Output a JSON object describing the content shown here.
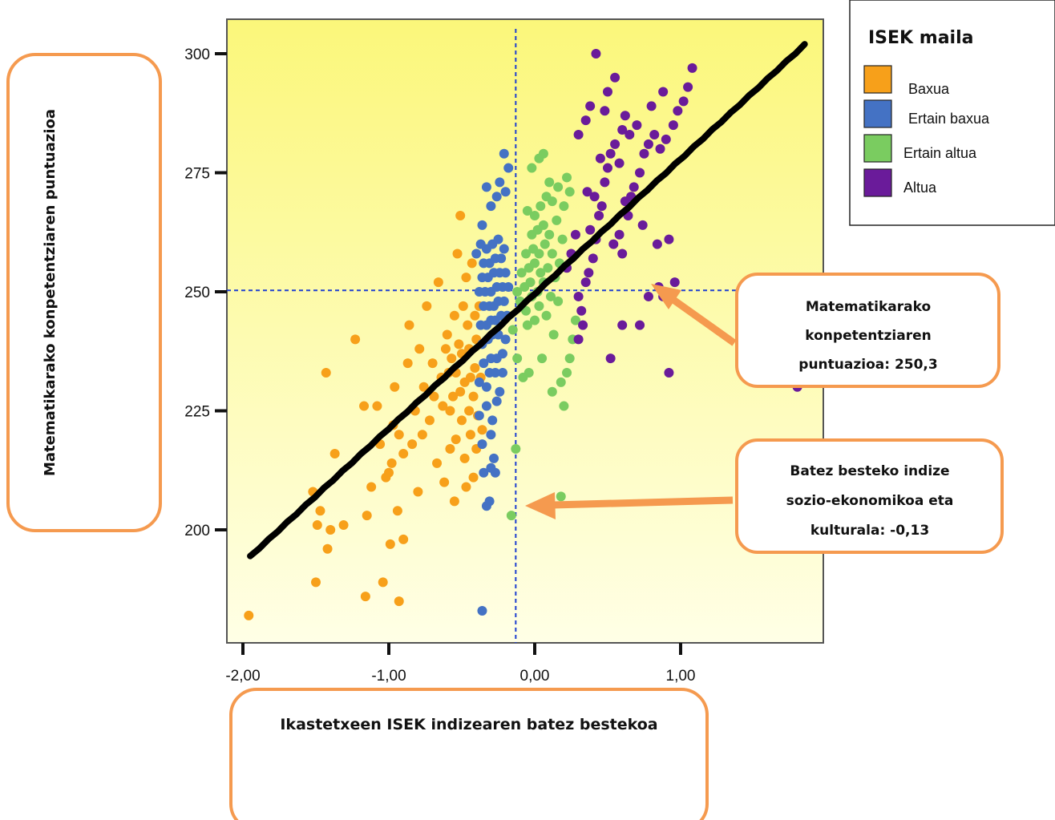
{
  "chart_data": {
    "type": "scatter",
    "xlabel": "Ikastetxeen ISEK indizearen batez bestekoa",
    "ylabel": "Matematikarako konpetentziaren puntuazioa",
    "xlim": [
      -2.1,
      1.95
    ],
    "ylim": [
      178,
      307
    ],
    "x_ticks": [
      -2,
      -1,
      0,
      1
    ],
    "x_tick_labels": [
      "-2,00",
      "-1,00",
      "0,00",
      "1,00"
    ],
    "y_ticks": [
      200,
      225,
      250,
      275,
      300
    ],
    "y_tick_labels": [
      "200",
      "225",
      "250",
      "275",
      "300"
    ],
    "background": "yellow-gradient",
    "legend": {
      "title": "ISEK maila",
      "placement": "top-right",
      "entries": [
        {
          "label": "Baxua",
          "color": "#F7A01A"
        },
        {
          "label": "Ertain baxua",
          "color": "#4472C4"
        },
        {
          "label": "Ertain altua",
          "color": "#7ACC60"
        },
        {
          "label": "Altua",
          "color": "#6A1B9A"
        }
      ]
    },
    "reference_lines": {
      "mean_x": -0.13,
      "mean_y": 250.3
    },
    "regression_line": {
      "x": [
        -1.95,
        1.85
      ],
      "y": [
        194.5,
        302
      ]
    },
    "series": [
      {
        "name": "Baxua",
        "color": "#F7A01A",
        "points": [
          [
            -1.96,
            182
          ],
          [
            -1.5,
            189
          ],
          [
            -1.49,
            201
          ],
          [
            -1.47,
            204
          ],
          [
            -1.42,
            196
          ],
          [
            -1.4,
            200
          ],
          [
            -1.52,
            208
          ],
          [
            -1.43,
            233
          ],
          [
            -1.37,
            216
          ],
          [
            -1.31,
            201
          ],
          [
            -1.23,
            240
          ],
          [
            -1.17,
            226
          ],
          [
            -1.15,
            203
          ],
          [
            -1.16,
            186
          ],
          [
            -1.12,
            209
          ],
          [
            -1.08,
            226
          ],
          [
            -1.06,
            218
          ],
          [
            -1.04,
            189
          ],
          [
            -1.02,
            211
          ],
          [
            -1.0,
            212
          ],
          [
            -0.99,
            197
          ],
          [
            -0.98,
            214
          ],
          [
            -0.97,
            222
          ],
          [
            -0.96,
            230
          ],
          [
            -0.94,
            204
          ],
          [
            -0.93,
            185
          ],
          [
            -0.93,
            220
          ],
          [
            -0.9,
            198
          ],
          [
            -0.9,
            216
          ],
          [
            -0.87,
            235
          ],
          [
            -0.86,
            243
          ],
          [
            -0.84,
            218
          ],
          [
            -0.82,
            225
          ],
          [
            -0.8,
            208
          ],
          [
            -0.79,
            238
          ],
          [
            -0.77,
            220
          ],
          [
            -0.76,
            230
          ],
          [
            -0.74,
            247
          ],
          [
            -0.72,
            223
          ],
          [
            -0.7,
            235
          ],
          [
            -0.69,
            228
          ],
          [
            -0.67,
            214
          ],
          [
            -0.66,
            252
          ],
          [
            -0.64,
            232
          ],
          [
            -0.63,
            226
          ],
          [
            -0.62,
            210
          ],
          [
            -0.61,
            238
          ],
          [
            -0.6,
            241
          ],
          [
            -0.59,
            233
          ],
          [
            -0.58,
            217
          ],
          [
            -0.58,
            225
          ],
          [
            -0.57,
            236
          ],
          [
            -0.56,
            228
          ],
          [
            -0.55,
            206
          ],
          [
            -0.55,
            245
          ],
          [
            -0.54,
            219
          ],
          [
            -0.54,
            233
          ],
          [
            -0.53,
            258
          ],
          [
            -0.52,
            239
          ],
          [
            -0.51,
            229
          ],
          [
            -0.51,
            266
          ],
          [
            -0.5,
            223
          ],
          [
            -0.5,
            237
          ],
          [
            -0.49,
            247
          ],
          [
            -0.48,
            215
          ],
          [
            -0.48,
            231
          ],
          [
            -0.47,
            209
          ],
          [
            -0.47,
            253
          ],
          [
            -0.46,
            243
          ],
          [
            -0.45,
            225
          ],
          [
            -0.45,
            238
          ],
          [
            -0.44,
            220
          ],
          [
            -0.44,
            232
          ],
          [
            -0.43,
            256
          ],
          [
            -0.42,
            211
          ],
          [
            -0.42,
            228
          ],
          [
            -0.41,
            245
          ],
          [
            -0.41,
            234
          ],
          [
            -0.4,
            217
          ],
          [
            -0.4,
            240
          ],
          [
            -0.39,
            224
          ],
          [
            -0.38,
            247
          ],
          [
            -0.37,
            232
          ],
          [
            -0.36,
            221
          ]
        ]
      },
      {
        "name": "Ertain baxua",
        "color": "#4472C4",
        "points": [
          [
            -0.36,
            183
          ],
          [
            -0.33,
            205
          ],
          [
            -0.31,
            206
          ],
          [
            -0.35,
            212
          ],
          [
            -0.3,
            213
          ],
          [
            -0.27,
            212
          ],
          [
            -0.28,
            215
          ],
          [
            -0.3,
            220
          ],
          [
            -0.36,
            218
          ],
          [
            -0.38,
            224
          ],
          [
            -0.33,
            226
          ],
          [
            -0.29,
            223
          ],
          [
            -0.26,
            227
          ],
          [
            -0.24,
            229
          ],
          [
            -0.38,
            231
          ],
          [
            -0.33,
            230
          ],
          [
            -0.31,
            233
          ],
          [
            -0.27,
            233
          ],
          [
            -0.22,
            233
          ],
          [
            -0.35,
            235
          ],
          [
            -0.3,
            236
          ],
          [
            -0.26,
            236
          ],
          [
            -0.22,
            237
          ],
          [
            -0.36,
            239
          ],
          [
            -0.32,
            240
          ],
          [
            -0.29,
            241
          ],
          [
            -0.25,
            241
          ],
          [
            -0.2,
            240
          ],
          [
            -0.37,
            243
          ],
          [
            -0.33,
            243
          ],
          [
            -0.3,
            244
          ],
          [
            -0.27,
            244
          ],
          [
            -0.23,
            245
          ],
          [
            -0.19,
            245
          ],
          [
            -0.35,
            247
          ],
          [
            -0.31,
            247
          ],
          [
            -0.28,
            247
          ],
          [
            -0.25,
            248
          ],
          [
            -0.21,
            248
          ],
          [
            -0.38,
            250
          ],
          [
            -0.34,
            250
          ],
          [
            -0.3,
            250
          ],
          [
            -0.26,
            251
          ],
          [
            -0.22,
            251
          ],
          [
            -0.18,
            251
          ],
          [
            -0.36,
            253
          ],
          [
            -0.32,
            253
          ],
          [
            -0.28,
            254
          ],
          [
            -0.24,
            254
          ],
          [
            -0.2,
            254
          ],
          [
            -0.35,
            256
          ],
          [
            -0.31,
            256
          ],
          [
            -0.27,
            257
          ],
          [
            -0.23,
            257
          ],
          [
            -0.4,
            258
          ],
          [
            -0.33,
            259
          ],
          [
            -0.29,
            260
          ],
          [
            -0.37,
            260
          ],
          [
            -0.25,
            261
          ],
          [
            -0.21,
            259
          ],
          [
            -0.36,
            264
          ],
          [
            -0.3,
            268
          ],
          [
            -0.26,
            270
          ],
          [
            -0.2,
            271
          ],
          [
            -0.24,
            273
          ],
          [
            -0.33,
            272
          ],
          [
            -0.18,
            276
          ],
          [
            -0.21,
            279
          ]
        ]
      },
      {
        "name": "Ertain altua",
        "color": "#7ACC60",
        "points": [
          [
            -0.16,
            203
          ],
          [
            -0.13,
            217
          ],
          [
            -0.08,
            232
          ],
          [
            -0.12,
            236
          ],
          [
            -0.04,
            233
          ],
          [
            -0.15,
            242
          ],
          [
            -0.05,
            243
          ],
          [
            0.0,
            244
          ],
          [
            0.05,
            236
          ],
          [
            -0.1,
            248
          ],
          [
            -0.06,
            246
          ],
          [
            -0.02,
            249
          ],
          [
            0.03,
            247
          ],
          [
            0.08,
            245
          ],
          [
            0.13,
            241
          ],
          [
            -0.12,
            250
          ],
          [
            -0.07,
            251
          ],
          [
            -0.03,
            252
          ],
          [
            0.02,
            250
          ],
          [
            0.06,
            252
          ],
          [
            0.11,
            249
          ],
          [
            0.16,
            248
          ],
          [
            -0.09,
            254
          ],
          [
            -0.04,
            255
          ],
          [
            0.0,
            256
          ],
          [
            0.04,
            254
          ],
          [
            0.09,
            255
          ],
          [
            0.14,
            253
          ],
          [
            -0.06,
            258
          ],
          [
            -0.01,
            259
          ],
          [
            0.03,
            258
          ],
          [
            0.07,
            260
          ],
          [
            0.12,
            258
          ],
          [
            0.17,
            256
          ],
          [
            -0.02,
            262
          ],
          [
            0.02,
            263
          ],
          [
            0.06,
            264
          ],
          [
            0.1,
            262
          ],
          [
            0.15,
            265
          ],
          [
            0.19,
            261
          ],
          [
            -0.05,
            267
          ],
          [
            0.0,
            266
          ],
          [
            0.04,
            268
          ],
          [
            0.08,
            270
          ],
          [
            0.12,
            269
          ],
          [
            0.2,
            268
          ],
          [
            0.24,
            271
          ],
          [
            0.1,
            273
          ],
          [
            0.16,
            272
          ],
          [
            0.22,
            274
          ],
          [
            -0.02,
            276
          ],
          [
            0.03,
            278
          ],
          [
            0.06,
            279
          ],
          [
            0.18,
            231
          ],
          [
            0.12,
            229
          ],
          [
            0.22,
            233
          ],
          [
            0.2,
            226
          ],
          [
            0.24,
            236
          ],
          [
            0.26,
            240
          ],
          [
            0.28,
            244
          ],
          [
            0.18,
            207
          ]
        ]
      },
      {
        "name": "Altua",
        "color": "#6A1B9A",
        "points": [
          [
            0.22,
            255
          ],
          [
            0.25,
            258
          ],
          [
            0.28,
            262
          ],
          [
            0.3,
            249
          ],
          [
            0.32,
            246
          ],
          [
            0.35,
            252
          ],
          [
            0.33,
            243
          ],
          [
            0.3,
            240
          ],
          [
            0.37,
            254
          ],
          [
            0.4,
            257
          ],
          [
            0.42,
            261
          ],
          [
            0.38,
            263
          ],
          [
            0.44,
            266
          ],
          [
            0.46,
            268
          ],
          [
            0.41,
            270
          ],
          [
            0.36,
            271
          ],
          [
            0.48,
            273
          ],
          [
            0.5,
            276
          ],
          [
            0.45,
            278
          ],
          [
            0.52,
            279
          ],
          [
            0.55,
            281
          ],
          [
            0.58,
            277
          ],
          [
            0.6,
            284
          ],
          [
            0.62,
            287
          ],
          [
            0.65,
            283
          ],
          [
            0.48,
            288
          ],
          [
            0.5,
            292
          ],
          [
            0.55,
            295
          ],
          [
            0.42,
            300
          ],
          [
            0.38,
            289
          ],
          [
            0.35,
            286
          ],
          [
            0.3,
            283
          ],
          [
            0.62,
            269
          ],
          [
            0.68,
            272
          ],
          [
            0.72,
            275
          ],
          [
            0.75,
            279
          ],
          [
            0.78,
            281
          ],
          [
            0.82,
            283
          ],
          [
            0.86,
            280
          ],
          [
            0.9,
            282
          ],
          [
            0.95,
            285
          ],
          [
            0.98,
            288
          ],
          [
            1.02,
            290
          ],
          [
            1.05,
            293
          ],
          [
            1.08,
            297
          ],
          [
            0.88,
            292
          ],
          [
            0.8,
            289
          ],
          [
            0.7,
            285
          ],
          [
            0.66,
            270
          ],
          [
            0.64,
            266
          ],
          [
            0.58,
            262
          ],
          [
            0.54,
            260
          ],
          [
            0.6,
            258
          ],
          [
            0.74,
            264
          ],
          [
            0.84,
            260
          ],
          [
            0.92,
            261
          ],
          [
            0.96,
            252
          ],
          [
            0.85,
            251
          ],
          [
            0.78,
            249
          ],
          [
            0.88,
            249
          ],
          [
            0.6,
            243
          ],
          [
            0.72,
            243
          ],
          [
            0.92,
            233
          ],
          [
            0.52,
            236
          ],
          [
            1.8,
            230
          ]
        ]
      }
    ]
  },
  "callouts": {
    "mean_y": {
      "lines": [
        "Matematikarako",
        "konpetentziaren",
        "puntuazioa: 250,3"
      ]
    },
    "mean_x": {
      "lines": [
        "Batez besteko indize",
        "sozio-ekonomikoa eta",
        "kulturala: -0,13"
      ]
    }
  },
  "colors": {
    "callout_border": "#F59A4F",
    "arrow": "#F59A4F",
    "reference_line": "#1E3FD0",
    "regression_line": "#000000",
    "plot_bg_top": "#FBF77A",
    "plot_bg_bottom": "#FFFFE6"
  }
}
